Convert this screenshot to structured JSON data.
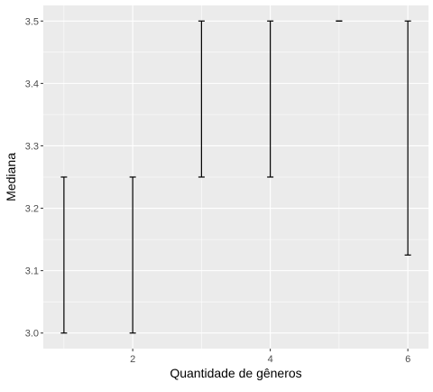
{
  "chart_data": {
    "type": "errorbar",
    "title": "",
    "xlabel": "Quantidade de gêneros",
    "ylabel": "Mediana",
    "xlim": [
      0.7,
      6.3
    ],
    "ylim": [
      2.975,
      3.525
    ],
    "x_ticks": [
      2,
      4,
      6
    ],
    "x_tick_labels": [
      "2",
      "4",
      "6"
    ],
    "y_ticks": [
      3.0,
      3.1,
      3.2,
      3.3,
      3.4,
      3.5
    ],
    "y_tick_labels": [
      "3.0",
      "3.1",
      "3.2",
      "3.3",
      "3.4",
      "3.5"
    ],
    "grid": true,
    "points": [
      {
        "x": 1,
        "ymin": 3.0,
        "ymax": 3.25
      },
      {
        "x": 2,
        "ymin": 3.0,
        "ymax": 3.25
      },
      {
        "x": 3,
        "ymin": 3.25,
        "ymax": 3.5
      },
      {
        "x": 4,
        "ymin": 3.25,
        "ymax": 3.5
      },
      {
        "x": 5,
        "ymin": 3.5,
        "ymax": 3.5
      },
      {
        "x": 6,
        "ymin": 3.125,
        "ymax": 3.5
      }
    ],
    "colors": {
      "panel": "#ebebeb",
      "grid_major": "#ffffff",
      "bar": "#000000",
      "tick_text": "#4d4d4d"
    }
  }
}
